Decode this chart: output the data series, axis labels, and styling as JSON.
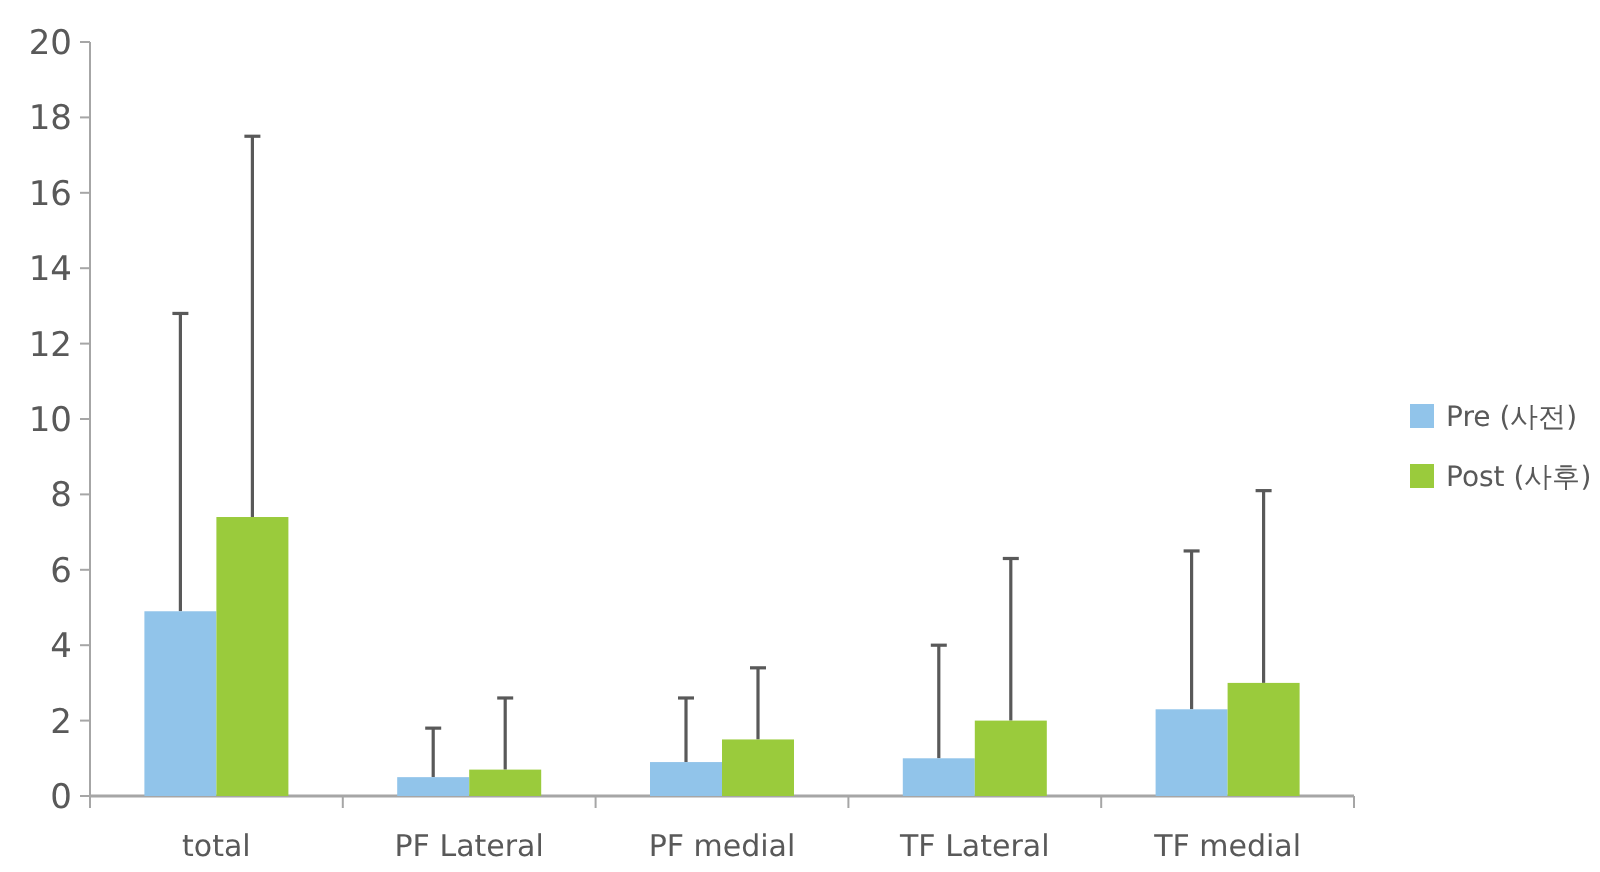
{
  "chart_data": {
    "type": "bar",
    "categories": [
      "total",
      "PF Lateral",
      "PF medial",
      "TF Lateral",
      "TF medial"
    ],
    "series": [
      {
        "name": "Pre (사전)",
        "color": "#91c4ea",
        "values": [
          4.9,
          0.5,
          0.9,
          1.0,
          2.3
        ],
        "errors": [
          [
            4.9,
            12.8
          ],
          [
            0.5,
            1.8
          ],
          [
            0.9,
            2.6
          ],
          [
            1.0,
            4.0
          ],
          [
            2.3,
            6.5
          ]
        ]
      },
      {
        "name": "Post (사후)",
        "color": "#9acb3c",
        "values": [
          7.4,
          0.7,
          1.5,
          2.0,
          3.0
        ],
        "errors": [
          [
            7.4,
            17.5
          ],
          [
            0.7,
            2.6
          ],
          [
            1.5,
            3.4
          ],
          [
            2.0,
            6.3
          ],
          [
            3.0,
            8.1
          ]
        ]
      }
    ],
    "ylim": [
      0,
      20
    ],
    "yticks": [
      0,
      2,
      4,
      6,
      8,
      10,
      12,
      14,
      16,
      18,
      20
    ],
    "grid": false,
    "legend": "right"
  }
}
